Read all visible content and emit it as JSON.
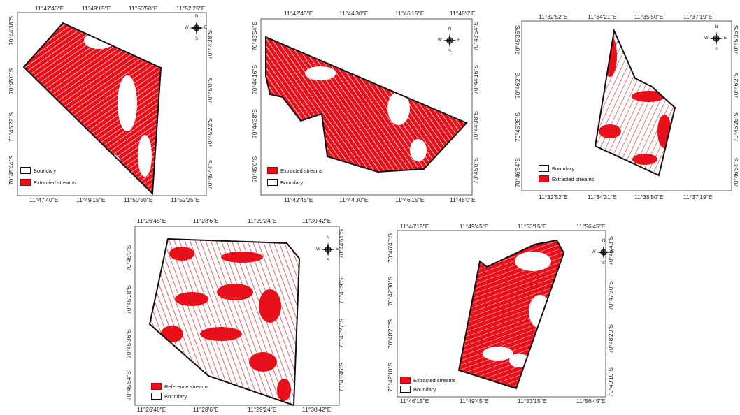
{
  "colors": {
    "stream": "#e8101a",
    "boundary": "#111111",
    "background": "#ffffff"
  },
  "maps": [
    {
      "id": "map-1",
      "top_labels": [
        "11°47'40\"E",
        "11°49'15\"E",
        "11°50'50\"E",
        "11°52'25\"E"
      ],
      "bottom_labels": [
        "11°47'40\"E",
        "11°49'15\"E",
        "11°50'50\"E",
        "11°52'25\"E"
      ],
      "left_labels": [
        "70°44'38\"S",
        "70°45'0\"S",
        "70°45'22\"S",
        "70°45'44\"S"
      ],
      "right_labels": [
        "70°44'38\"S",
        "70°45'0\"S",
        "70°45'22\"S",
        "70°45'44\"S"
      ],
      "legend": [
        {
          "type": "boundary",
          "label": "Boundary"
        },
        {
          "type": "stream",
          "label": "Extracted streams"
        }
      ],
      "compass": {
        "n": "N",
        "e": "E",
        "s": "S",
        "w": "W"
      }
    },
    {
      "id": "map-2",
      "top_labels": [
        "11°42'45\"E",
        "11°44'30\"E",
        "11°46'15\"E",
        "11°48'0\"E"
      ],
      "bottom_labels": [
        "11°42'45\"E",
        "11°44'30\"E",
        "11°46'15\"E",
        "11°48'0\"E"
      ],
      "left_labels": [
        "70°43'54\"S",
        "70°44'16\"S",
        "70°44'38\"S",
        "70°45'0\"S"
      ],
      "right_labels": [
        "70°43'54\"S",
        "70°44'16\"S",
        "70°44'38\"S",
        "70°45'0\"S"
      ],
      "legend": [
        {
          "type": "stream",
          "label": "Extracted streams"
        },
        {
          "type": "boundary",
          "label": "Boundary"
        }
      ],
      "compass": {
        "n": "N",
        "e": "E",
        "s": "S",
        "w": "W"
      }
    },
    {
      "id": "map-3",
      "top_labels": [
        "11°32'52\"E",
        "11°34'21\"E",
        "11°35'50\"E",
        "11°37'19\"E"
      ],
      "bottom_labels": [
        "11°32'52\"E",
        "11°34'21\"E",
        "11°35'50\"E",
        "11°37'19\"E"
      ],
      "left_labels": [
        "70°45'36\"S",
        "70°46'2\"S",
        "70°46'28\"S",
        "70°46'54\"S"
      ],
      "right_labels": [
        "70°45'36\"S",
        "70°46'2\"S",
        "70°46'28\"S",
        "70°46'54\"S"
      ],
      "legend": [
        {
          "type": "boundary",
          "label": "Boundary"
        },
        {
          "type": "stream",
          "label": "Extracted streams"
        }
      ],
      "compass": {
        "n": "N",
        "e": "E",
        "s": "S",
        "w": "W"
      }
    },
    {
      "id": "map-4",
      "top_labels": [
        "11°26'48\"E",
        "11°28'6\"E",
        "11°29'24\"E",
        "11°30'42\"E"
      ],
      "bottom_labels": [
        "11°26'48\"E",
        "11°28'6\"E",
        "11°29'24\"E",
        "11°30'42\"E"
      ],
      "left_labels": [
        "70°45'0\"S",
        "70°45'18\"S",
        "70°45'36\"S",
        "70°45'54\"S"
      ],
      "right_labels": [
        "70°44'51\"S",
        "70°45'9\"S",
        "70°45'27\"S",
        "70°45'45\"S"
      ],
      "legend": [
        {
          "type": "stream",
          "label": "Reference streams"
        },
        {
          "type": "boundary",
          "label": "Boundary"
        }
      ],
      "compass": {
        "n": "N",
        "e": "E",
        "s": "S",
        "w": "W"
      }
    },
    {
      "id": "map-5",
      "top_labels": [
        "11°46'15\"E",
        "11°49'45\"E",
        "11°53'15\"E",
        "11°56'45\"E"
      ],
      "bottom_labels": [
        "11°46'15\"E",
        "11°49'45\"E",
        "11°53'15\"E",
        "11°56'45\"E"
      ],
      "left_labels": [
        "70°46'40\"S",
        "70°47'30\"S",
        "70°48'20\"S",
        "70°49'10\"S"
      ],
      "right_labels": [
        "70°46'40\"S",
        "70°47'30\"S",
        "70°48'20\"S",
        "70°49'10\"S"
      ],
      "legend": [
        {
          "type": "stream",
          "label": "Extracted streams"
        },
        {
          "type": "boundary",
          "label": "Boundary"
        }
      ],
      "compass": {
        "n": "N",
        "e": "E",
        "s": "S",
        "w": "W"
      }
    }
  ]
}
